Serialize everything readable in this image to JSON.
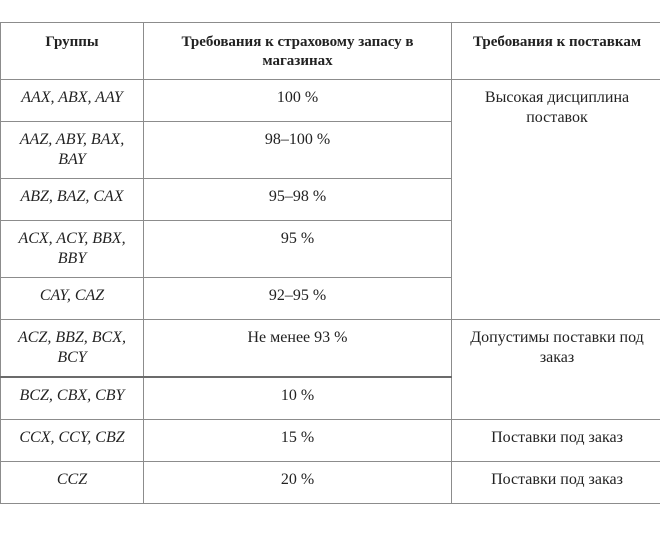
{
  "table": {
    "headers": [
      "Группы",
      "Требования к страховому запасу в магазинах",
      "Требования к поставкам"
    ],
    "rows": [
      {
        "group": "AAX, ABX, AAY",
        "stock": "100 %"
      },
      {
        "group": "AAZ, ABY, BAX, BAY",
        "stock": "98–100 %"
      },
      {
        "group": "ABZ, BAZ, CAX",
        "stock": "95–98 %"
      },
      {
        "group": "ACX, ACY, BBX, BBY",
        "stock": "95 %"
      },
      {
        "group": "CAY, CAZ",
        "stock": "92–95 %"
      },
      {
        "group": "ACZ, BBZ, BCX, BCY",
        "stock": "Не менее 93 %"
      },
      {
        "group": "BCZ, CBX, CBY",
        "stock": "10 %"
      },
      {
        "group": "CCX, CCY, CBZ",
        "stock": "15 %"
      },
      {
        "group": "CCZ",
        "stock": "20 %"
      }
    ],
    "supply": {
      "high_discipline": "Высокая дисциплина поставок",
      "orders_allowed": "Допустимы поставки под заказ",
      "to_order_1": "Поставки под заказ",
      "to_order_2": "Поставки под заказ"
    }
  }
}
